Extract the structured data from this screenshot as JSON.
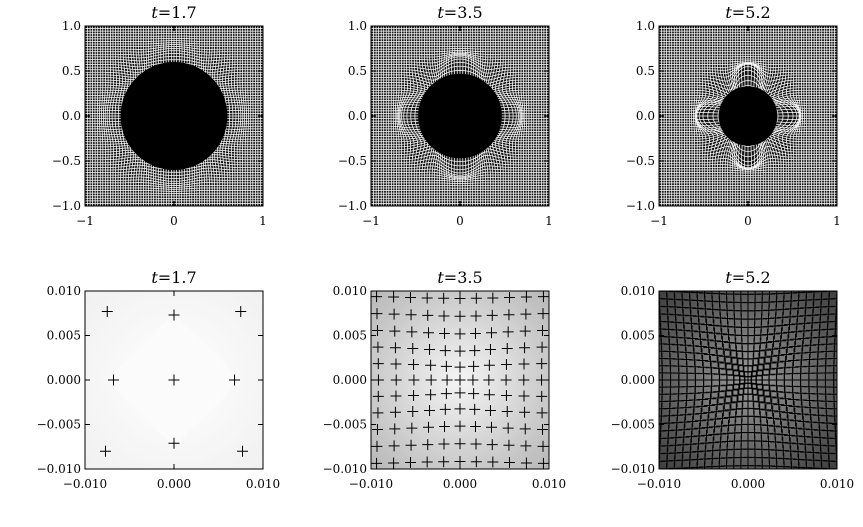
{
  "chart_data": [
    {
      "type": "mesh",
      "time_label": "t",
      "time_value": "=1.7",
      "xlim": [
        -1,
        1
      ],
      "ylim": [
        -1,
        1
      ],
      "x_ticks": [
        "−1",
        "0",
        "1"
      ],
      "y_ticks": [
        "1.0",
        "0.5",
        "0.0",
        "−0.5",
        "−1.0"
      ],
      "x_tick_values": [
        -1,
        0,
        1
      ],
      "y_tick_values": [
        1.0,
        0.5,
        0.0,
        -0.5,
        -1.0
      ],
      "dense_region_radius": 0.6,
      "grid_lines": 70,
      "distortion": 0.04
    },
    {
      "type": "mesh",
      "time_label": "t",
      "time_value": "=3.5",
      "xlim": [
        -1,
        1
      ],
      "ylim": [
        -1,
        1
      ],
      "x_ticks": [
        "−1",
        "0",
        "1"
      ],
      "y_ticks": [
        "1.0",
        "0.5",
        "0.0",
        "−0.5",
        "−1.0"
      ],
      "x_tick_values": [
        -1,
        0,
        1
      ],
      "y_tick_values": [
        1.0,
        0.5,
        0.0,
        -0.5,
        -1.0
      ],
      "dense_region_radius": 0.47,
      "grid_lines": 70,
      "distortion": 0.09
    },
    {
      "type": "mesh",
      "time_label": "t",
      "time_value": "=5.2",
      "xlim": [
        -1,
        1
      ],
      "ylim": [
        -1,
        1
      ],
      "x_ticks": [
        "−1",
        "0",
        "1"
      ],
      "y_ticks": [
        "1.0",
        "0.5",
        "0.0",
        "−0.5",
        "−1.0"
      ],
      "x_tick_values": [
        -1,
        0,
        1
      ],
      "y_tick_values": [
        1.0,
        0.5,
        0.0,
        -0.5,
        -1.0
      ],
      "dense_region_radius": 0.33,
      "grid_lines": 70,
      "distortion": 0.15
    },
    {
      "type": "scatter",
      "time_label": "t",
      "time_value": "=1.7",
      "xlim": [
        -0.01,
        0.01
      ],
      "ylim": [
        -0.01,
        0.01
      ],
      "x_ticks": [
        "−0.010",
        "0.000",
        "0.010"
      ],
      "y_ticks": [
        "0.010",
        "0.005",
        "0.000",
        "−0.005",
        "−0.010"
      ],
      "x_tick_values": [
        -0.01,
        0.0,
        0.01
      ],
      "y_tick_values": [
        0.01,
        0.005,
        0.0,
        -0.005,
        -0.01
      ],
      "background": {
        "center": "#ffffff",
        "edge": "#f0f0f0",
        "diamond": "#fbfbfb"
      },
      "points": [
        [
          -0.0075,
          0.0077
        ],
        [
          0.0,
          0.0073
        ],
        [
          0.0075,
          0.0077
        ],
        [
          -0.0068,
          0.0
        ],
        [
          0.0,
          0.0
        ],
        [
          0.0068,
          0.0
        ],
        [
          -0.0077,
          -0.008
        ],
        [
          0.0,
          -0.0071
        ],
        [
          0.0077,
          -0.008
        ]
      ]
    },
    {
      "type": "scatter",
      "time_label": "t",
      "time_value": "=3.5",
      "xlim": [
        -0.01,
        0.01
      ],
      "ylim": [
        -0.01,
        0.01
      ],
      "x_ticks": [
        "−0.010",
        "0.000",
        "0.010"
      ],
      "y_ticks": [
        "0.010",
        "0.005",
        "0.000",
        "−0.005",
        "−0.010"
      ],
      "x_tick_values": [
        -0.01,
        0.0,
        0.01
      ],
      "y_tick_values": [
        0.01,
        0.005,
        0.0,
        -0.005,
        -0.01
      ],
      "background": {
        "center": "#f4f4f4",
        "edge": "#b6b6b6"
      },
      "grid_n": 11,
      "grid_spacing": 0.0019,
      "grid_compression": 0.38
    },
    {
      "type": "scatter",
      "time_label": "t",
      "time_value": "=5.2",
      "xlim": [
        -0.01,
        0.01
      ],
      "ylim": [
        -0.01,
        0.01
      ],
      "x_ticks": [
        "−0.010",
        "0.000",
        "0.010"
      ],
      "y_ticks": [
        "0.010",
        "0.005",
        "0.000",
        "−0.005",
        "−0.010"
      ],
      "x_tick_values": [
        -0.01,
        0.0,
        0.01
      ],
      "y_tick_values": [
        0.01,
        0.005,
        0.0,
        -0.005,
        -0.01
      ],
      "background": {
        "center": "#9a9a9a",
        "edge": "#3c3c3c"
      },
      "grid_n": 25,
      "grid_spacing": 0.00085,
      "grid_compression": 0.72
    }
  ]
}
